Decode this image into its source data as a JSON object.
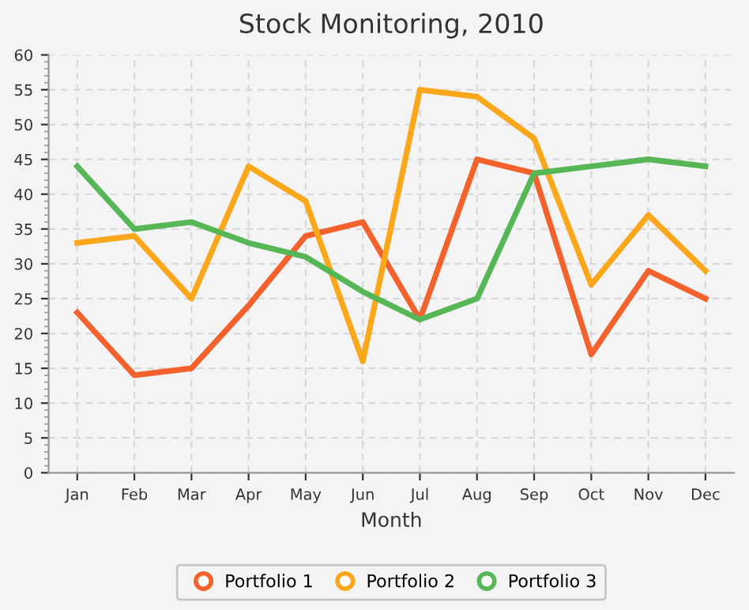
{
  "chart_data": {
    "type": "line",
    "title": "Stock Monitoring, 2010",
    "xlabel": "Month",
    "categories": [
      "Jan",
      "Feb",
      "Mar",
      "Apr",
      "May",
      "Jun",
      "Jul",
      "Aug",
      "Sep",
      "Oct",
      "Nov",
      "Dec"
    ],
    "series": [
      {
        "name": "Portfolio 1",
        "color": "#f3622d",
        "values": [
          23,
          14,
          15,
          24,
          34,
          36,
          22,
          45,
          43,
          17,
          29,
          25
        ]
      },
      {
        "name": "Portfolio 2",
        "color": "#fba71b",
        "values": [
          33,
          34,
          25,
          44,
          39,
          16,
          55,
          54,
          48,
          27,
          37,
          29
        ]
      },
      {
        "name": "Portfolio 3",
        "color": "#57b757",
        "values": [
          44,
          35,
          36,
          33,
          31,
          26,
          22,
          25,
          43,
          44,
          45,
          44
        ]
      }
    ],
    "ylim": [
      0,
      60
    ],
    "yticks": [
      0,
      5,
      10,
      15,
      20,
      25,
      30,
      35,
      40,
      45,
      50,
      55,
      60
    ],
    "grid": true,
    "legend": "bottom",
    "marker": "none",
    "line_style": "solid"
  }
}
